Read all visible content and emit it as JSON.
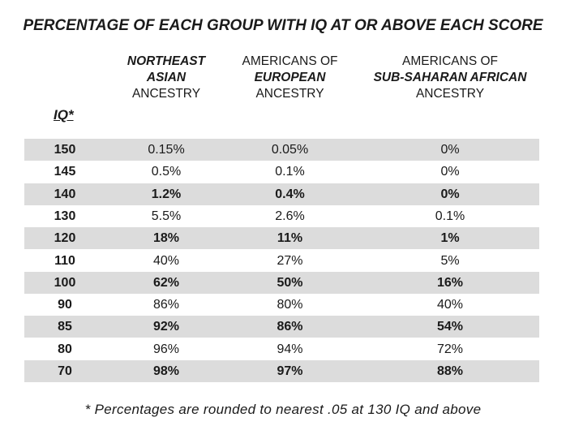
{
  "chart_data": {
    "type": "table",
    "title": "PERCENTAGE OF EACH GROUP WITH IQ AT OR ABOVE EACH SCORE",
    "row_header": "IQ*",
    "columns": [
      {
        "line1": "NORTHEAST",
        "line2": "ASIAN",
        "line3": "ANCESTRY"
      },
      {
        "line1": "AMERICANS OF",
        "line2": "EUROPEAN",
        "line3": "ANCESTRY"
      },
      {
        "line1": "AMERICANS OF",
        "line2": "SUB-SAHARAN AFRICAN",
        "line3": "ANCESTRY"
      }
    ],
    "rows": [
      {
        "iq": "150",
        "values": [
          "0.15%",
          "0.05%",
          "0%"
        ],
        "bold": false
      },
      {
        "iq": "145",
        "values": [
          "0.5%",
          "0.1%",
          "0%"
        ],
        "bold": false
      },
      {
        "iq": "140",
        "values": [
          "1.2%",
          "0.4%",
          "0%"
        ],
        "bold": true
      },
      {
        "iq": "130",
        "values": [
          "5.5%",
          "2.6%",
          "0.1%"
        ],
        "bold": false
      },
      {
        "iq": "120",
        "values": [
          "18%",
          "11%",
          "1%"
        ],
        "bold": true
      },
      {
        "iq": "110",
        "values": [
          "40%",
          "27%",
          "5%"
        ],
        "bold": false
      },
      {
        "iq": "100",
        "values": [
          "62%",
          "50%",
          "16%"
        ],
        "bold": true
      },
      {
        "iq": "90",
        "values": [
          "86%",
          "80%",
          "40%"
        ],
        "bold": false
      },
      {
        "iq": "85",
        "values": [
          "92%",
          "86%",
          "54%"
        ],
        "bold": true
      },
      {
        "iq": "80",
        "values": [
          "96%",
          "94%",
          "72%"
        ],
        "bold": false
      },
      {
        "iq": "70",
        "values": [
          "98%",
          "97%",
          "88%"
        ],
        "bold": true
      }
    ],
    "footnote": "* Percentages are rounded to nearest .05 at 130 IQ and above",
    "shaded_row_color": "#dcdcdc"
  }
}
